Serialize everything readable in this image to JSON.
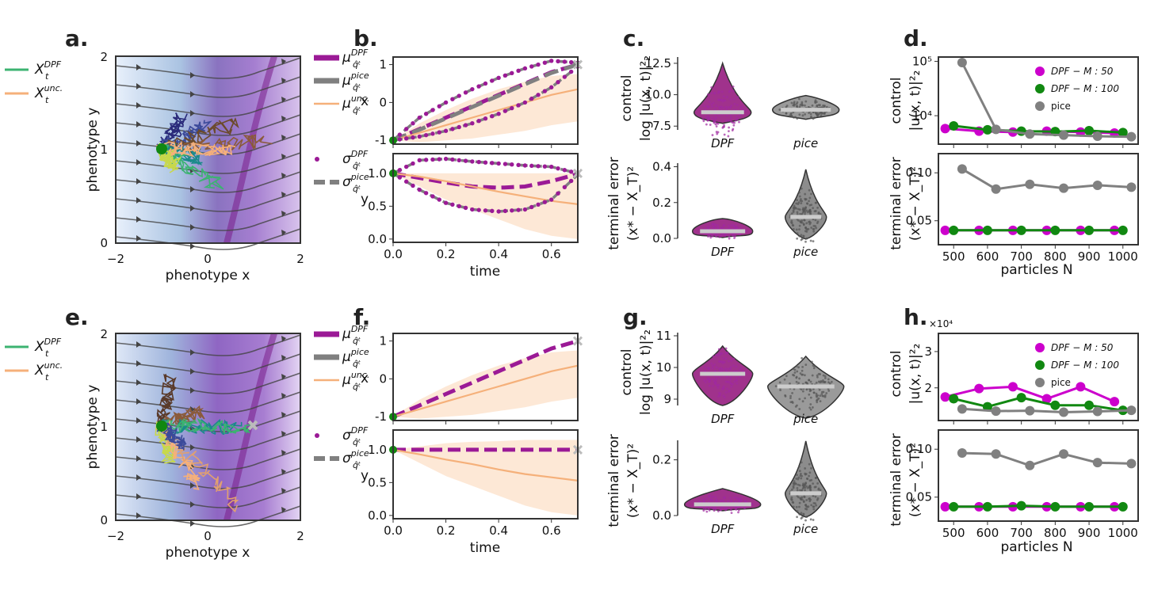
{
  "panels": {
    "a": {
      "label": "a.",
      "xlabel": "phenotype x",
      "ylabel": "phenotype y",
      "xticks": [
        "−2",
        "0",
        "2"
      ],
      "yticks": [
        "0",
        "1",
        "2"
      ]
    },
    "b": {
      "label": "b.",
      "xlabel": "time",
      "ylabel_top": "x",
      "ylabel_bottom": "y"
    },
    "c": {
      "label": "c."
    },
    "d": {
      "label": "d.",
      "xlabel": "particles N"
    },
    "e": {
      "label": "e.",
      "xlabel": "phenotype x",
      "ylabel": "phenotype y",
      "xticks": [
        "−2",
        "0",
        "2"
      ],
      "yticks": [
        "0",
        "1",
        "2"
      ]
    },
    "f": {
      "label": "f.",
      "xlabel": "time",
      "ylabel_top": "x",
      "ylabel_bottom": "y"
    },
    "g": {
      "label": "g."
    },
    "h": {
      "label": "h.",
      "xlabel": "particles N",
      "exponent": "×10⁴"
    }
  },
  "legends": {
    "traj": [
      {
        "sym": "X",
        "sub": "t",
        "sup": "DPF",
        "color": "#3cb371"
      },
      {
        "sym": "X",
        "sub": "t",
        "sup": "unc.",
        "color": "#f5b07a"
      }
    ],
    "mu": [
      {
        "sym": "μ",
        "sub": "q̂ᵗ",
        "sup": "DPF",
        "color": "#9b1a96"
      },
      {
        "sym": "μ",
        "sub": "q̂ᵗ",
        "sup": "pice",
        "color": "#808080"
      },
      {
        "sym": "μ",
        "sub": "q̂ᵗ",
        "sup": "unc.",
        "color": "#f5b07a"
      }
    ],
    "sigma": [
      {
        "sym": "σ",
        "sub": "q̂ᵗ",
        "sup": "DPF",
        "color": "#9b1a96"
      },
      {
        "sym": "σ",
        "sub": "q̂ᵗ",
        "sup": "pice",
        "color": "#808080"
      }
    ],
    "particles": [
      {
        "label": "DPF − M : 50",
        "color": "#cc00cc"
      },
      {
        "label": "DPF − M : 100",
        "color": "#118811"
      },
      {
        "label": "pice",
        "color": "#808080"
      }
    ]
  },
  "violin_labels": {
    "control_line1": "control",
    "control_line2": "log |u(x, t)|²₂",
    "term_line1": "terminal error",
    "term_line2": "(x* − X_T)²",
    "d_control_line2": "|u(x, t)|²₂",
    "cats": [
      "DPF",
      "pice"
    ]
  },
  "chart_data": [
    {
      "id": "b-top",
      "type": "line",
      "xlabel": "time",
      "ylabel": "x",
      "xlim": [
        0,
        0.7
      ],
      "ylim": [
        -1.1,
        1.2
      ],
      "xticks": [
        "0.0",
        "0.2",
        "0.4",
        "0.6"
      ],
      "yticks": [
        -1,
        0,
        1
      ],
      "series": [
        {
          "name": "μ DPF",
          "x": [
            0,
            0.1,
            0.2,
            0.3,
            0.4,
            0.5,
            0.6,
            0.7
          ],
          "y": [
            -1,
            -0.7,
            -0.4,
            -0.1,
            0.2,
            0.5,
            0.8,
            1.0
          ]
        },
        {
          "name": "μ pice",
          "x": [
            0,
            0.1,
            0.2,
            0.3,
            0.4,
            0.5,
            0.6,
            0.7
          ],
          "y": [
            -1,
            -0.72,
            -0.42,
            -0.12,
            0.18,
            0.48,
            0.78,
            1.0
          ]
        },
        {
          "name": "μ unc.",
          "x": [
            0,
            0.1,
            0.2,
            0.3,
            0.4,
            0.5,
            0.6,
            0.7
          ],
          "y": [
            -1,
            -0.8,
            -0.6,
            -0.4,
            -0.2,
            0.0,
            0.2,
            0.35
          ]
        },
        {
          "name": "σ DPF upper",
          "x": [
            0,
            0.1,
            0.2,
            0.3,
            0.4,
            0.5,
            0.6,
            0.7
          ],
          "y": [
            -1,
            -0.4,
            0.0,
            0.35,
            0.65,
            0.9,
            1.1,
            1.05
          ]
        },
        {
          "name": "σ DPF lower",
          "x": [
            0,
            0.1,
            0.2,
            0.3,
            0.4,
            0.5,
            0.6,
            0.7
          ],
          "y": [
            -1,
            -0.9,
            -0.75,
            -0.55,
            -0.3,
            0.0,
            0.4,
            0.95
          ]
        }
      ]
    },
    {
      "id": "b-bottom",
      "type": "line",
      "xlabel": "time",
      "ylabel": "y",
      "xlim": [
        0,
        0.7
      ],
      "ylim": [
        -0.05,
        1.3
      ],
      "xticks": [
        "0.0",
        "0.2",
        "0.4",
        "0.6"
      ],
      "yticks": [
        "0.0",
        "0.5",
        "1.0"
      ],
      "series": [
        {
          "name": "μ DPF",
          "x": [
            0,
            0.1,
            0.2,
            0.3,
            0.4,
            0.5,
            0.6,
            0.7
          ],
          "y": [
            1.0,
            0.93,
            0.86,
            0.8,
            0.78,
            0.8,
            0.88,
            0.99
          ]
        },
        {
          "name": "μ unc.",
          "x": [
            0,
            0.1,
            0.2,
            0.3,
            0.4,
            0.5,
            0.6,
            0.7
          ],
          "y": [
            1.0,
            0.95,
            0.88,
            0.8,
            0.72,
            0.65,
            0.58,
            0.53
          ]
        },
        {
          "name": "σ DPF upper",
          "x": [
            0,
            0.1,
            0.2,
            0.3,
            0.4,
            0.5,
            0.6,
            0.7
          ],
          "y": [
            1.0,
            1.2,
            1.22,
            1.18,
            1.15,
            1.12,
            1.1,
            1.0
          ]
        },
        {
          "name": "σ DPF lower",
          "x": [
            0,
            0.1,
            0.2,
            0.3,
            0.4,
            0.5,
            0.6,
            0.7
          ],
          "y": [
            1.0,
            0.75,
            0.55,
            0.45,
            0.42,
            0.45,
            0.6,
            0.98
          ]
        }
      ]
    },
    {
      "id": "c",
      "type": "violin",
      "top": {
        "ylim": [
          7.2,
          13
        ],
        "yticks": [
          "7.5",
          "10.0",
          "12.5"
        ],
        "medians": [
          8.6,
          8.8
        ]
      },
      "bottom": {
        "ylim": [
          0,
          0.42
        ],
        "yticks": [
          "0.0",
          "0.2",
          "0.4"
        ],
        "medians": [
          0.04,
          0.12
        ]
      },
      "categories": [
        "DPF",
        "pice"
      ]
    },
    {
      "id": "d",
      "type": "line",
      "x": [
        500,
        600,
        700,
        800,
        900,
        1000
      ],
      "xticks": [
        "500",
        "600",
        "700",
        "800",
        "900",
        "1000"
      ],
      "top": {
        "scale": "log",
        "ylim": [
          3000,
          120000
        ],
        "yticks": [
          "10⁴",
          "10⁵"
        ],
        "series": [
          {
            "name": "DPF − M : 50",
            "x": [
              475,
              575,
              675,
              775,
              875,
              975
            ],
            "y": [
              5800,
              5200,
              5000,
              5200,
              5000,
              4800
            ]
          },
          {
            "name": "DPF − M : 100",
            "x": [
              500,
              600,
              700,
              800,
              900,
              1000
            ],
            "y": [
              6500,
              5500,
              5200,
              5100,
              5300,
              4900
            ]
          },
          {
            "name": "pice",
            "x": [
              525,
              625,
              725,
              825,
              925,
              1025
            ],
            "y": [
              95000,
              5600,
              4600,
              4400,
              4200,
              4100
            ]
          }
        ]
      },
      "bottom": {
        "ylim": [
          0.025,
          0.12
        ],
        "yticks": [
          "0.05",
          "0.10"
        ],
        "series": [
          {
            "name": "DPF − M : 50",
            "x": [
              475,
              575,
              675,
              775,
              875,
              975
            ],
            "y": [
              0.04,
              0.04,
              0.04,
              0.04,
              0.04,
              0.04
            ]
          },
          {
            "name": "DPF − M : 100",
            "x": [
              500,
              600,
              700,
              800,
              900,
              1000
            ],
            "y": [
              0.04,
              0.04,
              0.04,
              0.04,
              0.04,
              0.04
            ]
          },
          {
            "name": "pice",
            "x": [
              525,
              625,
              725,
              825,
              925,
              1025
            ],
            "y": [
              0.104,
              0.083,
              0.088,
              0.084,
              0.087,
              0.085
            ]
          }
        ]
      }
    },
    {
      "id": "f-top",
      "type": "line",
      "xlabel": "time",
      "ylabel": "x",
      "xlim": [
        0,
        0.7
      ],
      "ylim": [
        -1.1,
        1.2
      ],
      "xticks": [
        "0.0",
        "0.2",
        "0.4",
        "0.6"
      ],
      "yticks": [
        -1,
        0,
        1
      ],
      "series": [
        {
          "name": "μ DPF",
          "x": [
            0,
            0.1,
            0.2,
            0.3,
            0.4,
            0.5,
            0.6,
            0.7
          ],
          "y": [
            -1,
            -0.7,
            -0.4,
            -0.1,
            0.2,
            0.5,
            0.8,
            1.0
          ]
        },
        {
          "name": "μ unc.",
          "x": [
            0,
            0.1,
            0.2,
            0.3,
            0.4,
            0.5,
            0.6,
            0.7
          ],
          "y": [
            -1,
            -0.8,
            -0.6,
            -0.4,
            -0.2,
            0.0,
            0.2,
            0.35
          ]
        }
      ]
    },
    {
      "id": "f-bottom",
      "type": "line",
      "xlabel": "time",
      "ylabel": "y",
      "xlim": [
        0,
        0.7
      ],
      "ylim": [
        -0.05,
        1.3
      ],
      "xticks": [
        "0.0",
        "0.2",
        "0.4",
        "0.6"
      ],
      "yticks": [
        "0.0",
        "0.5",
        "1.0"
      ],
      "series": [
        {
          "name": "μ DPF",
          "x": [
            0,
            0.1,
            0.2,
            0.3,
            0.4,
            0.5,
            0.6,
            0.7
          ],
          "y": [
            1.0,
            1.0,
            1.0,
            1.0,
            1.0,
            1.0,
            1.0,
            1.0
          ]
        },
        {
          "name": "μ unc.",
          "x": [
            0,
            0.1,
            0.2,
            0.3,
            0.4,
            0.5,
            0.6,
            0.7
          ],
          "y": [
            1.0,
            0.93,
            0.85,
            0.78,
            0.7,
            0.63,
            0.58,
            0.53
          ]
        }
      ]
    },
    {
      "id": "g",
      "type": "violin",
      "top": {
        "ylim": [
          8.8,
          11.1
        ],
        "yticks": [
          "9",
          "10",
          "11"
        ],
        "medians": [
          9.8,
          9.4
        ]
      },
      "bottom": {
        "ylim": [
          0,
          0.27
        ],
        "yticks": [
          "0.0",
          "0.2"
        ],
        "medians": [
          0.04,
          0.08
        ]
      },
      "categories": [
        "DPF",
        "pice"
      ]
    },
    {
      "id": "h",
      "type": "line",
      "xticks": [
        "500",
        "600",
        "700",
        "800",
        "900",
        "1000"
      ],
      "top": {
        "ylim": [
          1.1,
          3.5
        ],
        "yticks": [
          "2",
          "3"
        ],
        "unit": "×10⁴",
        "series": [
          {
            "name": "DPF − M : 50",
            "x": [
              475,
              575,
              675,
              775,
              875,
              975
            ],
            "y": [
              1.75,
              1.98,
              2.03,
              1.7,
              2.03,
              1.62
            ]
          },
          {
            "name": "DPF − M : 100",
            "x": [
              500,
              600,
              700,
              800,
              900,
              1000
            ],
            "y": [
              1.7,
              1.48,
              1.73,
              1.52,
              1.52,
              1.38
            ]
          },
          {
            "name": "pice",
            "x": [
              525,
              625,
              725,
              825,
              925,
              1025
            ],
            "y": [
              1.42,
              1.36,
              1.37,
              1.33,
              1.35,
              1.38
            ]
          }
        ]
      },
      "bottom": {
        "ylim": [
          0.025,
          0.12
        ],
        "yticks": [
          "0.05",
          "0.10"
        ],
        "series": [
          {
            "name": "DPF − M : 50",
            "x": [
              475,
              575,
              675,
              775,
              875,
              975
            ],
            "y": [
              0.04,
              0.04,
              0.04,
              0.04,
              0.04,
              0.04
            ]
          },
          {
            "name": "DPF − M : 100",
            "x": [
              500,
              600,
              700,
              800,
              900,
              1000
            ],
            "y": [
              0.04,
              0.04,
              0.041,
              0.04,
              0.04,
              0.04
            ]
          },
          {
            "name": "pice",
            "x": [
              525,
              625,
              725,
              825,
              925,
              1025
            ],
            "y": [
              0.096,
              0.095,
              0.083,
              0.095,
              0.086,
              0.085
            ]
          }
        ]
      }
    }
  ]
}
